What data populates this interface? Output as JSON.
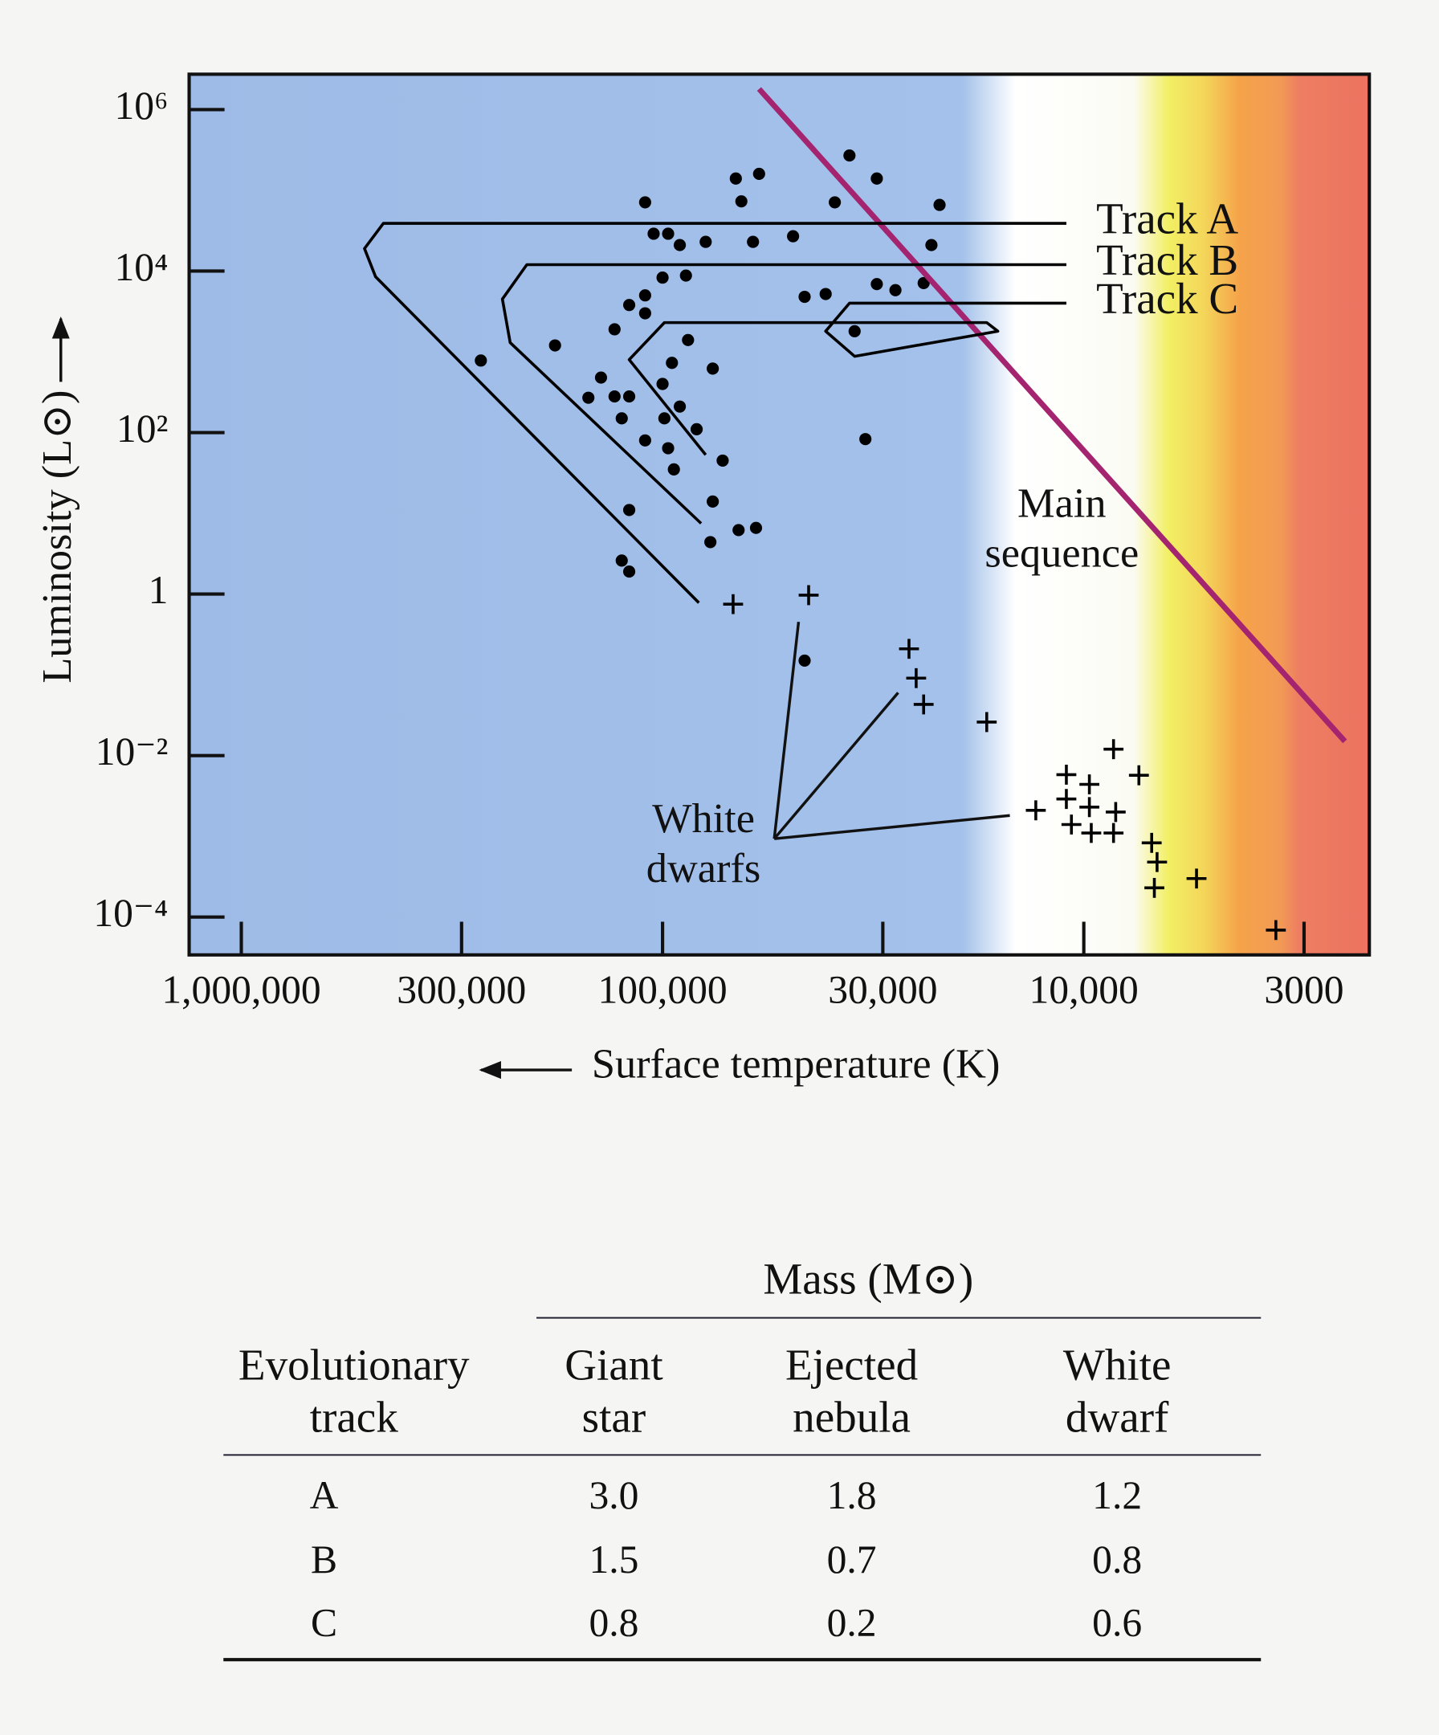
{
  "chart_data": {
    "type": "scatter",
    "xlabel": "Surface temperature (K)",
    "ylabel": "Luminosity (L⊙)",
    "xscale": "log",
    "yscale": "log",
    "xlim": [
      1330000,
      2100
    ],
    "ylim": [
      3.4e-05,
      2740000
    ],
    "xticks": [
      {
        "value": 1000000,
        "label": "1,000,000"
      },
      {
        "value": 300000,
        "label": "300,000"
      },
      {
        "value": 100000,
        "label": "100,000"
      },
      {
        "value": 30000,
        "label": "30,000"
      },
      {
        "value": 10000,
        "label": "10,000"
      },
      3000
    ],
    "yticks": [
      {
        "value": 1000000,
        "label": "10⁶"
      },
      {
        "value": 10000,
        "label": "10⁴"
      },
      {
        "value": 100,
        "label": "10²"
      },
      1,
      {
        "value": 0.01,
        "label": "10⁻²"
      },
      {
        "value": 0.0001,
        "label": "10⁻⁴"
      }
    ],
    "series": [
      {
        "marker": "dot",
        "color": "#000000",
        "x": [
          110000,
          105000,
          97000,
          91000,
          79000,
          67000,
          59000,
          65000,
          61000,
          49000,
          36000,
          39000,
          31000,
          22000,
          23000,
          31000,
          28000,
          24000,
          46000,
          41000,
          88000,
          100000,
          110000,
          120000,
          110000,
          130000,
          87000,
          95000,
          76000,
          270000,
          180000,
          140000,
          150000,
          130000,
          120000,
          125000,
          100000,
          91000,
          99000,
          83000,
          110000,
          97000,
          94000,
          72000,
          120000,
          76000,
          77000,
          66000,
          60000,
          125000,
          120000,
          46000,
          33000,
          35000
        ],
        "y": [
          71000,
          29000,
          29000,
          21000,
          23000,
          140000,
          160000,
          73000,
          23000,
          27000,
          270000,
          71000,
          140000,
          66000,
          21000,
          6900,
          5800,
          7100,
          4800,
          5200,
          8800,
          8300,
          5000,
          3800,
          3000,
          1900,
          1400,
          730,
          620,
          780,
          1200,
          480,
          270,
          280,
          280,
          150,
          400,
          210,
          150,
          110,
          80,
          64,
          35,
          45,
          11,
          14,
          4.4,
          6.2,
          6.6,
          2.6,
          1.9,
          0.15,
          83,
          1800
        ]
      },
      {
        "marker": "cross",
        "color": "#000000",
        "x": [
          68000,
          45000,
          26000,
          25000,
          24000,
          17000,
          13000,
          11000,
          11000,
          10700,
          9700,
          9700,
          9600,
          8500,
          8400,
          8500,
          7400,
          6900,
          6700,
          6800,
          5400,
          3500
        ],
        "y": [
          0.75,
          0.97,
          0.21,
          0.091,
          0.043,
          0.026,
          0.0021,
          0.0058,
          0.0029,
          0.0014,
          0.0044,
          0.0023,
          0.0011,
          0.012,
          0.002,
          0.0011,
          0.0057,
          0.00083,
          0.00048,
          0.00023,
          0.0003,
          6.9e-05
        ]
      },
      {
        "name": "Main sequence",
        "marker": "line",
        "color": "#a4246f",
        "x": [
          59000,
          2400
        ],
        "y": [
          1800000,
          0.015
        ]
      },
      {
        "name": "Track A",
        "marker": "track",
        "color": "#000000",
        "x": [
          11000,
          460000,
          510000,
          480000,
          82000
        ],
        "y": [
          39000,
          39000,
          19000,
          8500,
          0.78
        ]
      },
      {
        "name": "Track B",
        "marker": "track",
        "color": "#000000",
        "x": [
          11000,
          210000,
          240000,
          230000,
          81000
        ],
        "y": [
          12000,
          12000,
          4500,
          1300,
          7.5
        ]
      },
      {
        "name": "Track C",
        "marker": "track",
        "color": "#000000",
        "x": [
          11000,
          36000,
          41000,
          35000,
          16000,
          17000,
          99000,
          120000,
          79000
        ],
        "y": [
          4000,
          4000,
          1800,
          880,
          1800,
          2300,
          2300,
          800,
          53
        ]
      }
    ],
    "annotations": [
      {
        "text": "White dwarfs"
      }
    ]
  },
  "table": {
    "group_header": "Mass (M⊙)",
    "columns": [
      "Evolutionary track",
      "Giant star",
      "Ejected nebula",
      "White dwarf"
    ],
    "rows": [
      [
        "A",
        "3.0",
        "1.8",
        "1.2"
      ],
      [
        "B",
        "1.5",
        "0.7",
        "0.8"
      ],
      [
        "C",
        "0.8",
        "0.2",
        "0.6"
      ]
    ]
  }
}
